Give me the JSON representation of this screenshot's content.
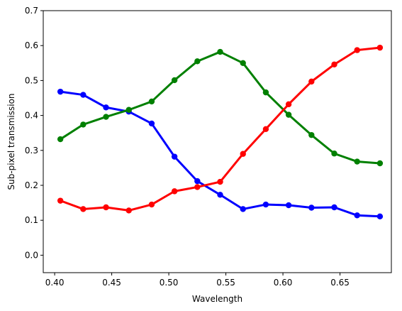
{
  "chart_data": {
    "type": "line",
    "title": "",
    "xlabel": "Wavelength",
    "ylabel": "Sub-pixel transmission",
    "xlim": [
      0.39,
      0.695
    ],
    "ylim": [
      -0.05,
      0.7
    ],
    "x_ticks": [
      0.4,
      0.45,
      0.5,
      0.55,
      0.6,
      0.65
    ],
    "x_tick_labels": [
      "0.40",
      "0.45",
      "0.50",
      "0.55",
      "0.60",
      "0.65"
    ],
    "y_ticks": [
      0.0,
      0.1,
      0.2,
      0.3,
      0.4,
      0.5,
      0.6,
      0.7
    ],
    "y_tick_labels": [
      "0.0",
      "0.1",
      "0.2",
      "0.3",
      "0.4",
      "0.5",
      "0.6",
      "0.7"
    ],
    "grid": false,
    "legend": "none",
    "x": [
      0.405,
      0.425,
      0.445,
      0.465,
      0.485,
      0.505,
      0.525,
      0.545,
      0.565,
      0.585,
      0.605,
      0.625,
      0.645,
      0.665,
      0.685
    ],
    "series": [
      {
        "color": "#0000ff",
        "values": [
          0.468,
          0.459,
          0.423,
          0.411,
          0.377,
          0.282,
          0.212,
          0.173,
          0.132,
          0.145,
          0.143,
          0.136,
          0.137,
          0.114,
          0.111
        ]
      },
      {
        "color": "#008000",
        "values": [
          0.332,
          0.374,
          0.396,
          0.416,
          0.44,
          0.501,
          0.555,
          0.582,
          0.55,
          0.466,
          0.402,
          0.344,
          0.291,
          0.268,
          0.263
        ]
      },
      {
        "color": "#ff0000",
        "values": [
          0.156,
          0.132,
          0.137,
          0.128,
          0.145,
          0.183,
          0.195,
          0.21,
          0.29,
          0.361,
          0.432,
          0.497,
          0.546,
          0.587,
          0.594
        ]
      }
    ]
  }
}
